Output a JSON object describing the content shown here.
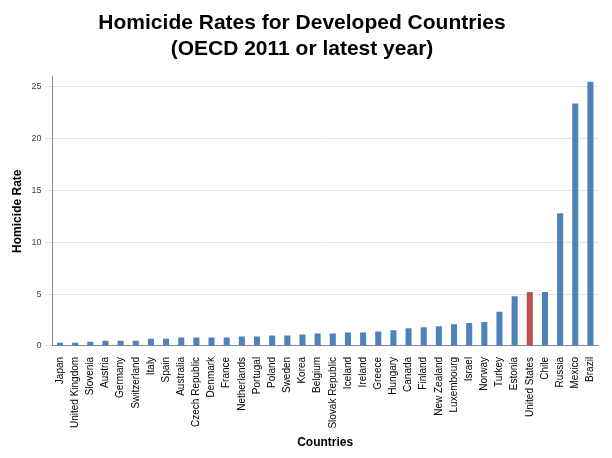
{
  "chart_data": {
    "type": "bar",
    "title": "Homicide Rates for Developed Countries",
    "subtitle": "(OECD 2011 or latest year)",
    "x_label": "Countries",
    "y_label": "Homicide Rate",
    "categories": [
      "Japan",
      "United Kingdom",
      "Slovenia",
      "Austria",
      "Germany",
      "Switzerland",
      "Italy",
      "Spain",
      "Australia",
      "Czech Republic",
      "Denmark",
      "France",
      "Netherlands",
      "Portugal",
      "Poland",
      "Sweden",
      "Korea",
      "Belgium",
      "Slovak Republic",
      "Iceland",
      "Ireland",
      "Greece",
      "Hungary",
      "Canada",
      "Finland",
      "New Zealand",
      "Luxembourg",
      "Israel",
      "Norway",
      "Turkey",
      "Estonia",
      "United States",
      "Chile",
      "Russia",
      "Mexico",
      "Brazil"
    ],
    "values": [
      0.3,
      0.3,
      0.4,
      0.5,
      0.5,
      0.5,
      0.7,
      0.7,
      0.8,
      0.8,
      0.8,
      0.8,
      0.9,
      0.9,
      1.0,
      1.0,
      1.1,
      1.2,
      1.2,
      1.3,
      1.3,
      1.4,
      1.5,
      1.7,
      1.8,
      1.9,
      2.1,
      2.2,
      2.3,
      3.3,
      4.8,
      5.2,
      5.2,
      12.8,
      23.4,
      25.5
    ],
    "colors": [
      "#4f81bd",
      "#4f81bd",
      "#4f81bd",
      "#4f81bd",
      "#4f81bd",
      "#4f81bd",
      "#4f81bd",
      "#4f81bd",
      "#4f81bd",
      "#4f81bd",
      "#4f81bd",
      "#4f81bd",
      "#4f81bd",
      "#4f81bd",
      "#4f81bd",
      "#4f81bd",
      "#4f81bd",
      "#4f81bd",
      "#4f81bd",
      "#4f81bd",
      "#4f81bd",
      "#4f81bd",
      "#4f81bd",
      "#4f81bd",
      "#4f81bd",
      "#4f81bd",
      "#4f81bd",
      "#4f81bd",
      "#4f81bd",
      "#4f81bd",
      "#4f81bd",
      "#c0504d",
      "#4f81bd",
      "#4f81bd",
      "#4f81bd",
      "#4f81bd"
    ],
    "ylim": [
      0,
      26
    ],
    "yticks": [
      0,
      5,
      10,
      15,
      20,
      25
    ],
    "grid": true
  }
}
